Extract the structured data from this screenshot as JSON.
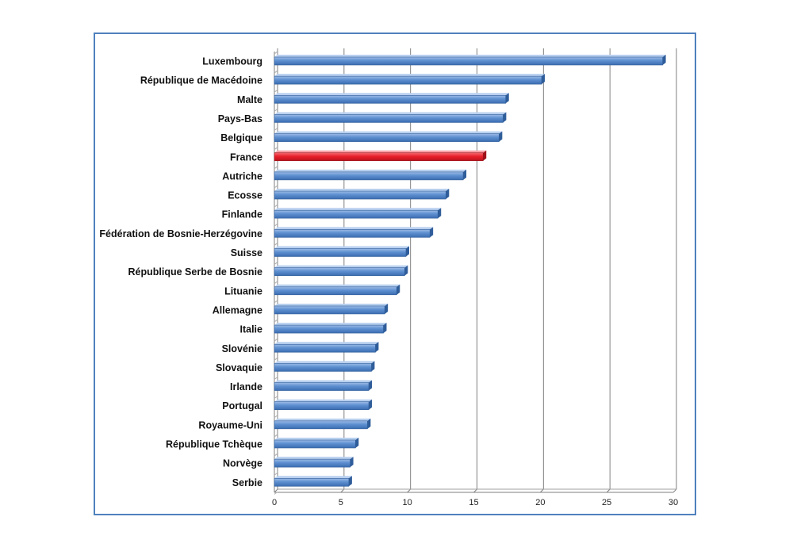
{
  "chart_data": {
    "type": "bar",
    "orientation": "horizontal",
    "title": "",
    "xlabel": "",
    "ylabel": "",
    "categories": [
      "Luxembourg",
      "République de Macédoine",
      "Malte",
      "Pays-Bas",
      "Belgique",
      "France",
      "Autriche",
      "Ecosse",
      "Finlande",
      "Fédération de Bosnie-Herzégovine",
      "Suisse",
      "République Serbe de Bosnie",
      "Lituanie",
      "Allemagne",
      "Italie",
      "Slovénie",
      "Slovaquie",
      "Irlande",
      "Portugal",
      "Royaume-Uni",
      "République Tchèque",
      "Norvège",
      "Serbie"
    ],
    "values": [
      29.2,
      20.1,
      17.4,
      17.2,
      16.9,
      15.7,
      14.2,
      12.9,
      12.3,
      11.7,
      9.9,
      9.8,
      9.2,
      8.3,
      8.2,
      7.6,
      7.3,
      7.1,
      7.1,
      7.0,
      6.1,
      5.7,
      5.6
    ],
    "highlight": "France",
    "xlim": [
      0,
      30
    ],
    "xticks": [
      "0",
      "5",
      "10",
      "15",
      "20",
      "25",
      "30"
    ],
    "grid": true,
    "legend": "none",
    "colors": {
      "bar": "#4f81bd",
      "highlight": "#e8202a",
      "grid": "#808080",
      "frame": "#4f81bd"
    }
  }
}
